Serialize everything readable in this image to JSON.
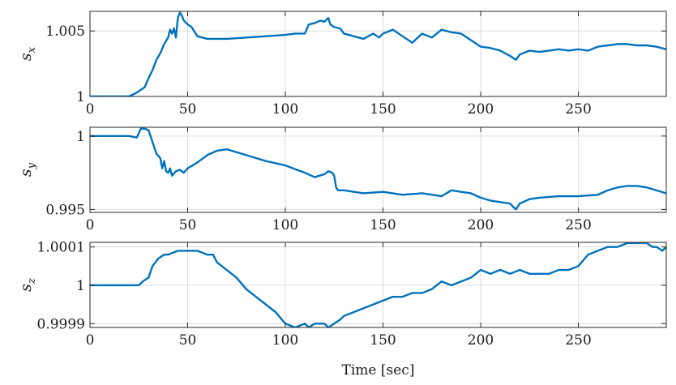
{
  "chart_data": [
    {
      "type": "line",
      "name": "sx",
      "ylabel_base": "s",
      "ylabel_sub": "x",
      "xlim": [
        0,
        295
      ],
      "ylim": [
        1.0,
        1.0065
      ],
      "xticks": [
        0,
        50,
        100,
        150,
        200,
        250
      ],
      "xtick_labels": [
        "0",
        "50",
        "100",
        "150",
        "200",
        "250"
      ],
      "yticks": [
        1.0,
        1.005
      ],
      "ytick_labels": [
        "1",
        "1.005"
      ],
      "grid": true,
      "series": [
        {
          "name": "sx",
          "x": [
            0,
            20,
            24,
            26,
            28,
            30,
            32,
            34,
            36,
            38,
            40,
            41,
            42,
            43,
            44,
            45,
            46,
            47,
            48,
            50,
            52,
            55,
            60,
            70,
            80,
            90,
            100,
            105,
            110,
            112,
            115,
            118,
            120,
            122,
            123,
            125,
            128,
            130,
            135,
            140,
            145,
            148,
            150,
            155,
            160,
            165,
            170,
            175,
            180,
            185,
            190,
            195,
            200,
            205,
            210,
            215,
            218,
            220,
            225,
            230,
            235,
            240,
            245,
            250,
            255,
            260,
            265,
            270,
            275,
            280,
            285,
            290,
            295
          ],
          "y": [
            1.0,
            1.0,
            1.0003,
            1.0005,
            1.0007,
            1.0014,
            1.002,
            1.0028,
            1.0033,
            1.004,
            1.0045,
            1.0051,
            1.0048,
            1.0052,
            1.0045,
            1.006,
            1.0064,
            1.0062,
            1.0058,
            1.0055,
            1.0053,
            1.0046,
            1.0044,
            1.0044,
            1.0045,
            1.0046,
            1.0047,
            1.0048,
            1.0048,
            1.0055,
            1.0056,
            1.0058,
            1.0057,
            1.006,
            1.0055,
            1.0053,
            1.0052,
            1.0048,
            1.0046,
            1.0044,
            1.0048,
            1.0045,
            1.0048,
            1.0051,
            1.0046,
            1.0041,
            1.0048,
            1.0045,
            1.0051,
            1.0049,
            1.0048,
            1.0043,
            1.0038,
            1.0037,
            1.0035,
            1.0031,
            1.0028,
            1.0032,
            1.0035,
            1.0034,
            1.0035,
            1.0036,
            1.0035,
            1.0036,
            1.0035,
            1.0038,
            1.0039,
            1.004,
            1.004,
            1.0039,
            1.0039,
            1.0038,
            1.0036
          ]
        }
      ]
    },
    {
      "type": "line",
      "name": "sy",
      "ylabel_base": "s",
      "ylabel_sub": "y",
      "xlim": [
        0,
        295
      ],
      "ylim": [
        0.9948,
        1.0006
      ],
      "xticks": [
        0,
        50,
        100,
        150,
        200,
        250
      ],
      "xtick_labels": [
        "0",
        "50",
        "100",
        "150",
        "200",
        "250"
      ],
      "yticks": [
        0.995,
        1.0
      ],
      "ytick_labels": [
        "0.995",
        "1"
      ],
      "grid": true,
      "series": [
        {
          "name": "sy",
          "x": [
            0,
            20,
            24,
            26,
            28,
            30,
            32,
            34,
            36,
            37,
            38,
            39,
            40,
            41,
            42,
            44,
            46,
            48,
            50,
            55,
            60,
            65,
            70,
            80,
            90,
            100,
            110,
            115,
            120,
            122,
            124,
            125,
            126,
            127,
            130,
            140,
            150,
            160,
            170,
            180,
            185,
            190,
            195,
            200,
            205,
            210,
            215,
            218,
            220,
            225,
            230,
            240,
            250,
            260,
            265,
            270,
            275,
            280,
            285,
            290,
            295
          ],
          "y": [
            1.0,
            1.0,
            0.9999,
            1.0005,
            1.0005,
            1.0004,
            0.9996,
            0.9988,
            0.9985,
            0.9978,
            0.9983,
            0.9976,
            0.9975,
            0.9978,
            0.9973,
            0.9976,
            0.9977,
            0.9975,
            0.9978,
            0.9982,
            0.9987,
            0.999,
            0.9991,
            0.9987,
            0.9983,
            0.998,
            0.9975,
            0.9972,
            0.9974,
            0.9976,
            0.9975,
            0.9973,
            0.9965,
            0.9963,
            0.9963,
            0.9961,
            0.9962,
            0.996,
            0.9961,
            0.9959,
            0.9963,
            0.9962,
            0.9961,
            0.9958,
            0.9956,
            0.9955,
            0.9954,
            0.995,
            0.9954,
            0.9957,
            0.9958,
            0.9959,
            0.9959,
            0.996,
            0.9963,
            0.9965,
            0.9966,
            0.9966,
            0.9965,
            0.9963,
            0.9961
          ]
        }
      ]
    },
    {
      "type": "line",
      "name": "sz",
      "ylabel_base": "s",
      "ylabel_sub": "z",
      "xlim": [
        0,
        295
      ],
      "ylim": [
        0.99989,
        1.000112
      ],
      "xticks": [
        0,
        50,
        100,
        150,
        200,
        250
      ],
      "xtick_labels": [
        "0",
        "50",
        "100",
        "150",
        "200",
        "250"
      ],
      "yticks": [
        0.9999,
        1.0,
        1.0001
      ],
      "ytick_labels": [
        "0.9999",
        "1",
        "1.0001"
      ],
      "xlabel": "Time [sec]",
      "grid": true,
      "series": [
        {
          "name": "sz",
          "x": [
            0,
            20,
            25,
            27,
            30,
            32,
            35,
            38,
            40,
            45,
            50,
            55,
            60,
            63,
            65,
            70,
            75,
            80,
            85,
            90,
            95,
            100,
            105,
            110,
            112,
            115,
            120,
            122,
            125,
            128,
            130,
            135,
            140,
            145,
            150,
            155,
            160,
            165,
            170,
            175,
            180,
            185,
            190,
            195,
            200,
            205,
            210,
            215,
            220,
            225,
            230,
            235,
            240,
            245,
            250,
            255,
            260,
            265,
            270,
            275,
            280,
            285,
            288,
            290,
            293,
            295
          ],
          "y": [
            1.0,
            1.0,
            1.0,
            1.00001,
            1.00002,
            1.00005,
            1.00007,
            1.00008,
            1.00008,
            1.00009,
            1.00009,
            1.00009,
            1.00008,
            1.00008,
            1.00006,
            1.00004,
            1.00002,
            0.99999,
            0.99997,
            0.99995,
            0.99993,
            0.9999,
            0.99989,
            0.9999,
            0.99989,
            0.9999,
            0.9999,
            0.99989,
            0.9999,
            0.99991,
            0.99992,
            0.99993,
            0.99994,
            0.99995,
            0.99996,
            0.99997,
            0.99997,
            0.99998,
            0.99998,
            0.99999,
            1.00001,
            1.0,
            1.00001,
            1.00002,
            1.00004,
            1.00003,
            1.00004,
            1.00003,
            1.00004,
            1.00003,
            1.00003,
            1.00003,
            1.00004,
            1.00004,
            1.00005,
            1.00008,
            1.00009,
            1.0001,
            1.0001,
            1.00011,
            1.00011,
            1.00011,
            1.0001,
            1.0001,
            1.00009,
            1.0001
          ]
        }
      ]
    }
  ],
  "colors": {
    "line": "#0072BD",
    "frame": "#262626",
    "grid": "#dcdcdc"
  }
}
